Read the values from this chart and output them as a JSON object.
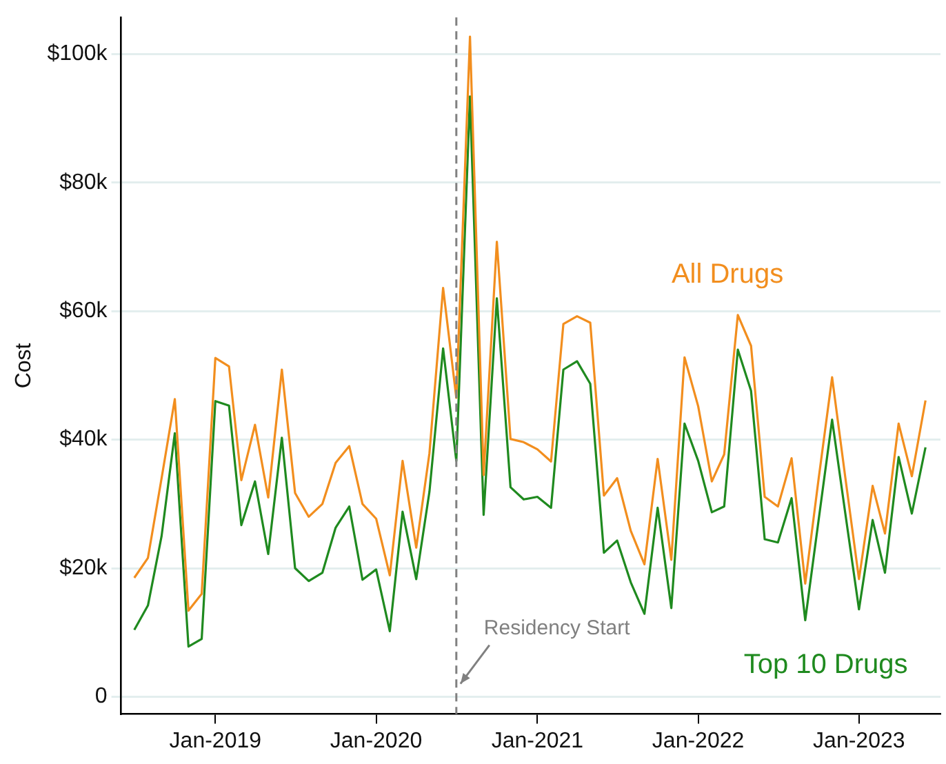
{
  "chart_data": {
    "type": "line",
    "ylabel": "Cost",
    "x": [
      "2018-07",
      "2018-08",
      "2018-09",
      "2018-10",
      "2018-11",
      "2018-12",
      "2019-01",
      "2019-02",
      "2019-03",
      "2019-04",
      "2019-05",
      "2019-06",
      "2019-07",
      "2019-08",
      "2019-09",
      "2019-10",
      "2019-11",
      "2019-12",
      "2020-01",
      "2020-02",
      "2020-03",
      "2020-04",
      "2020-05",
      "2020-06",
      "2020-07",
      "2020-08",
      "2020-09",
      "2020-10",
      "2020-11",
      "2020-12",
      "2021-01",
      "2021-02",
      "2021-03",
      "2021-04",
      "2021-05",
      "2021-06",
      "2021-07",
      "2021-08",
      "2021-09",
      "2021-10",
      "2021-11",
      "2021-12",
      "2022-01",
      "2022-02",
      "2022-03",
      "2022-04",
      "2022-05",
      "2022-06",
      "2022-07",
      "2022-08",
      "2022-09",
      "2022-10",
      "2022-11",
      "2022-12",
      "2023-01",
      "2023-02",
      "2023-03",
      "2023-04",
      "2023-05",
      "2023-06"
    ],
    "series": [
      {
        "name": "All Drugs",
        "color": "#f28e1e",
        "values": [
          18500,
          21600,
          34000,
          46300,
          13400,
          16000,
          52700,
          51400,
          33700,
          42300,
          31000,
          50900,
          31700,
          28000,
          30000,
          36400,
          39000,
          30000,
          27700,
          18900,
          36700,
          23200,
          37900,
          63600,
          46500,
          102700,
          34500,
          70800,
          40100,
          39600,
          38500,
          36600,
          58000,
          59200,
          58200,
          31300,
          34000,
          25800,
          20600,
          37000,
          21300,
          52800,
          45200,
          33500,
          37700,
          59400,
          54600,
          31100,
          29600,
          37100,
          17600,
          33700,
          49700,
          34100,
          18300,
          32800,
          25400,
          42500,
          34300,
          46100
        ]
      },
      {
        "name": "Top 10 Drugs",
        "color": "#1f8a1f",
        "values": [
          10400,
          14200,
          25000,
          41000,
          7800,
          9000,
          46000,
          45300,
          26700,
          33500,
          22200,
          40300,
          20000,
          18000,
          19300,
          26300,
          29600,
          18200,
          19800,
          10200,
          28800,
          18300,
          31900,
          54200,
          36700,
          93400,
          28300,
          62000,
          32600,
          30700,
          31100,
          29400,
          50900,
          52200,
          48700,
          22400,
          24300,
          17800,
          12900,
          29400,
          13800,
          42500,
          36700,
          28700,
          29600,
          54000,
          47600,
          24500,
          24000,
          30900,
          11900,
          27300,
          43100,
          28500,
          13600,
          27500,
          19300,
          37300,
          28500,
          38800
        ]
      }
    ],
    "xlim": [
      "2018-06-01",
      "2023-07-05"
    ],
    "xticks": [
      {
        "value": "2019-01",
        "label": "Jan-2019"
      },
      {
        "value": "2020-01",
        "label": "Jan-2020"
      },
      {
        "value": "2021-01",
        "label": "Jan-2021"
      },
      {
        "value": "2022-01",
        "label": "Jan-2022"
      },
      {
        "value": "2023-01",
        "label": "Jan-2023"
      }
    ],
    "ylim": [
      -2700,
      105700
    ],
    "yticks": [
      0,
      {
        "value": 20000,
        "label": "$20k"
      },
      {
        "value": 40000,
        "label": "$40k"
      },
      {
        "value": 60000,
        "label": "$60k"
      },
      {
        "value": 80000,
        "label": "$80k"
      },
      {
        "value": 100000,
        "label": "$100k"
      }
    ],
    "grid": "y",
    "legend": false,
    "marker": "none",
    "line_style": "solid",
    "ref_lines": [
      {
        "axis": "x",
        "value": "2020-07",
        "label": "Residency Start",
        "color": "#808080",
        "line_style": "dashed"
      }
    ]
  }
}
